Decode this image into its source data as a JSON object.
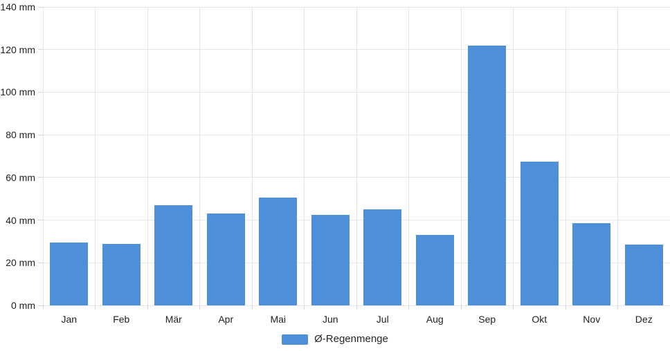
{
  "chart": {
    "legend_label": "Ø-Regenmenge",
    "colors": {
      "bar": "#4D90D9",
      "grid": "#e6e6e6",
      "tick": "#d6d6d6",
      "text": "#1f1f1f",
      "background": "#ffffff"
    }
  },
  "chart_data": {
    "type": "bar",
    "title": "",
    "xlabel": "",
    "ylabel": "mm",
    "categories": [
      "Jan",
      "Feb",
      "Mär",
      "Apr",
      "Mai",
      "Jun",
      "Jul",
      "Aug",
      "Sep",
      "Okt",
      "Nov",
      "Dez"
    ],
    "series": [
      {
        "name": "Ø-Regenmenge",
        "values": [
          29.5,
          29,
          47,
          43,
          50.5,
          42.5,
          45,
          33,
          122,
          67.5,
          38.5,
          28.5
        ]
      }
    ],
    "ylim": [
      0,
      140
    ],
    "ytick_step": 20,
    "ytick_labels": [
      "0 mm",
      "20 mm",
      "40 mm",
      "60 mm",
      "80 mm",
      "100 mm",
      "120 mm",
      "140 mm"
    ],
    "grid": true,
    "legend_position": "bottom"
  }
}
